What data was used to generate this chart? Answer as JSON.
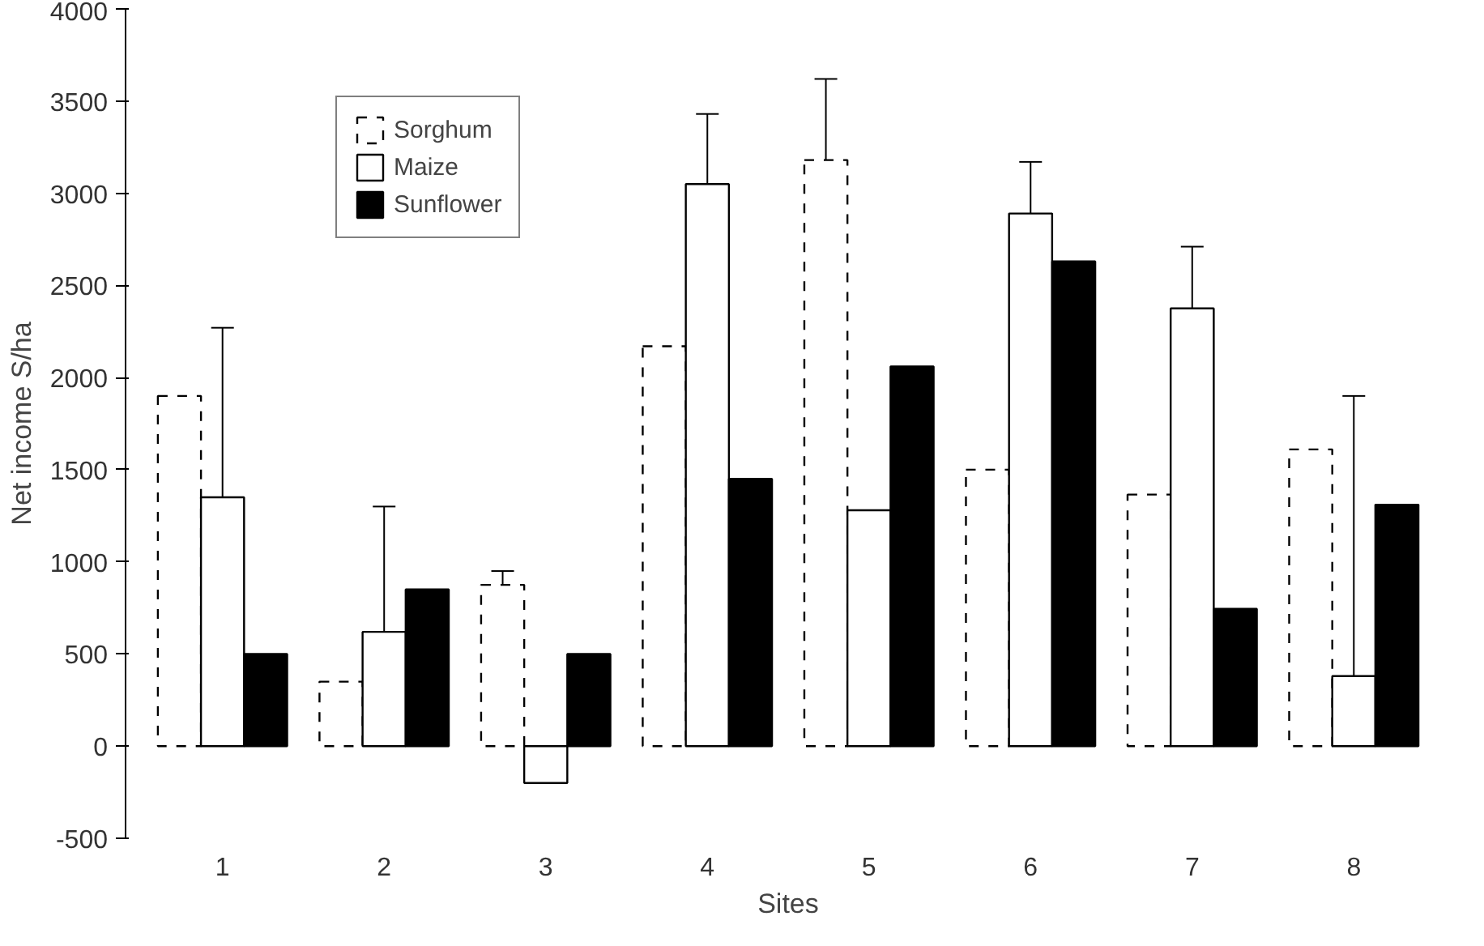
{
  "chart_data": {
    "type": "bar",
    "xlabel": "Sites",
    "ylabel": "Net income S/ha",
    "categories": [
      "1",
      "2",
      "3",
      "4",
      "5",
      "6",
      "7",
      "8"
    ],
    "series": [
      {
        "name": "Sorghum",
        "color": "#ffffff",
        "line_style": "dashed",
        "values": [
          1900,
          350,
          875,
          2170,
          3180,
          1500,
          1365,
          1610
        ],
        "errors": [
          null,
          null,
          [
            875,
            950
          ],
          null,
          [
            3180,
            3620
          ],
          null,
          null,
          null
        ]
      },
      {
        "name": "Maize",
        "color": "#ffffff",
        "line_style": "solid",
        "values": [
          1350,
          620,
          -200,
          3050,
          1280,
          2890,
          2375,
          380
        ],
        "errors": [
          [
            1350,
            2270
          ],
          [
            620,
            1300
          ],
          null,
          [
            3050,
            3430
          ],
          null,
          [
            2890,
            3170
          ],
          [
            2375,
            2710
          ],
          [
            380,
            1900
          ]
        ]
      },
      {
        "name": "Sunflower",
        "color": "#000000",
        "line_style": "solid",
        "values": [
          500,
          850,
          500,
          1450,
          2060,
          2630,
          745,
          1310
        ]
      }
    ],
    "ylim": [
      -500,
      4000
    ],
    "yticks": [
      -500,
      0,
      500,
      1000,
      1500,
      2000,
      2500,
      3000,
      3500,
      4000
    ],
    "grid": false,
    "legend": "top left"
  }
}
